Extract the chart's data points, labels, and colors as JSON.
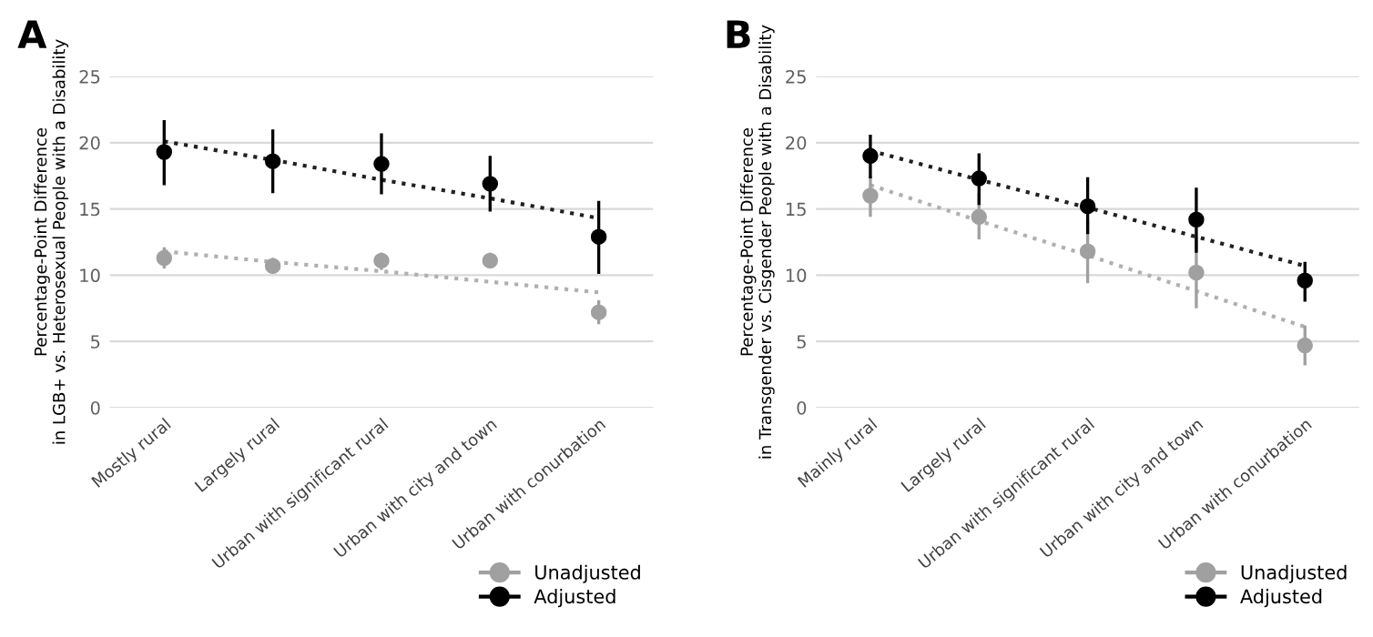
{
  "chart_data": [
    {
      "type": "scatter",
      "title": "A",
      "ylabel": "Percentage-Point Difference\nin LGB+ vs. Heterosexual People with a Disability",
      "categories": [
        "Mostly rural",
        "Largely rural",
        "Urban with significant rural",
        "Urban with city and town",
        "Urban with conurbation"
      ],
      "ylim": [
        0,
        25
      ],
      "yticks": [
        0,
        5,
        10,
        15,
        20,
        25
      ],
      "grid": "y",
      "legend": "bottom right",
      "marker": "circle",
      "series": [
        {
          "name": "Unadjusted",
          "color": "#a0a0a0",
          "values": [
            11.3,
            10.7,
            11.1,
            11.1,
            7.2
          ],
          "errors": [
            [
              10.5,
              12.1
            ],
            [
              10.1,
              11.3
            ],
            [
              10.4,
              11.7
            ],
            [
              10.5,
              11.7
            ],
            [
              6.3,
              8.1
            ]
          ]
        },
        {
          "name": "Adjusted",
          "color": "#000000",
          "values": [
            19.3,
            18.6,
            18.4,
            16.9,
            12.9
          ],
          "errors": [
            [
              16.8,
              21.7
            ],
            [
              16.2,
              21.0
            ],
            [
              16.1,
              20.7
            ],
            [
              14.8,
              19.0
            ],
            [
              10.1,
              15.6
            ]
          ]
        },
        {
          "type": "line",
          "marker": "none",
          "color": "#b0b0b0",
          "line_style": "dotted",
          "values": [
            11.8,
            11.0,
            10.3,
            9.5,
            8.7
          ]
        },
        {
          "type": "line",
          "marker": "none",
          "color": "#202020",
          "line_style": "dotted",
          "values": [
            20.1,
            18.7,
            17.2,
            15.8,
            14.3
          ]
        }
      ]
    },
    {
      "type": "scatter",
      "title": "B",
      "ylabel": "Percentage-Point Difference\nin Transgender vs. Cisgender People with a Disability",
      "categories": [
        "Mainly rural",
        "Largely rural",
        "Urban with significant rural",
        "Urban with city and town",
        "Urban with conurbation"
      ],
      "ylim": [
        0,
        25
      ],
      "yticks": [
        0,
        5,
        10,
        15,
        20,
        25
      ],
      "grid": "y",
      "legend": "bottom right",
      "marker": "circle",
      "series": [
        {
          "name": "Unadjusted",
          "color": "#a0a0a0",
          "values": [
            16.0,
            14.4,
            11.8,
            10.2,
            4.7
          ],
          "errors": [
            [
              14.4,
              17.5
            ],
            [
              12.7,
              16.2
            ],
            [
              9.4,
              14.2
            ],
            [
              7.5,
              12.9
            ],
            [
              3.2,
              6.2
            ]
          ]
        },
        {
          "name": "Adjusted",
          "color": "#000000",
          "values": [
            19.0,
            17.3,
            15.2,
            14.2,
            9.6
          ],
          "errors": [
            [
              17.3,
              20.6
            ],
            [
              15.3,
              19.2
            ],
            [
              13.1,
              17.4
            ],
            [
              11.7,
              16.6
            ],
            [
              8.0,
              11.0
            ]
          ]
        },
        {
          "type": "line",
          "marker": "none",
          "color": "#b0b0b0",
          "line_style": "dotted",
          "values": [
            16.8,
            14.1,
            11.5,
            8.8,
            6.1
          ]
        },
        {
          "type": "line",
          "marker": "none",
          "color": "#202020",
          "line_style": "dotted",
          "values": [
            19.4,
            17.2,
            15.1,
            12.9,
            10.7
          ]
        }
      ]
    }
  ]
}
